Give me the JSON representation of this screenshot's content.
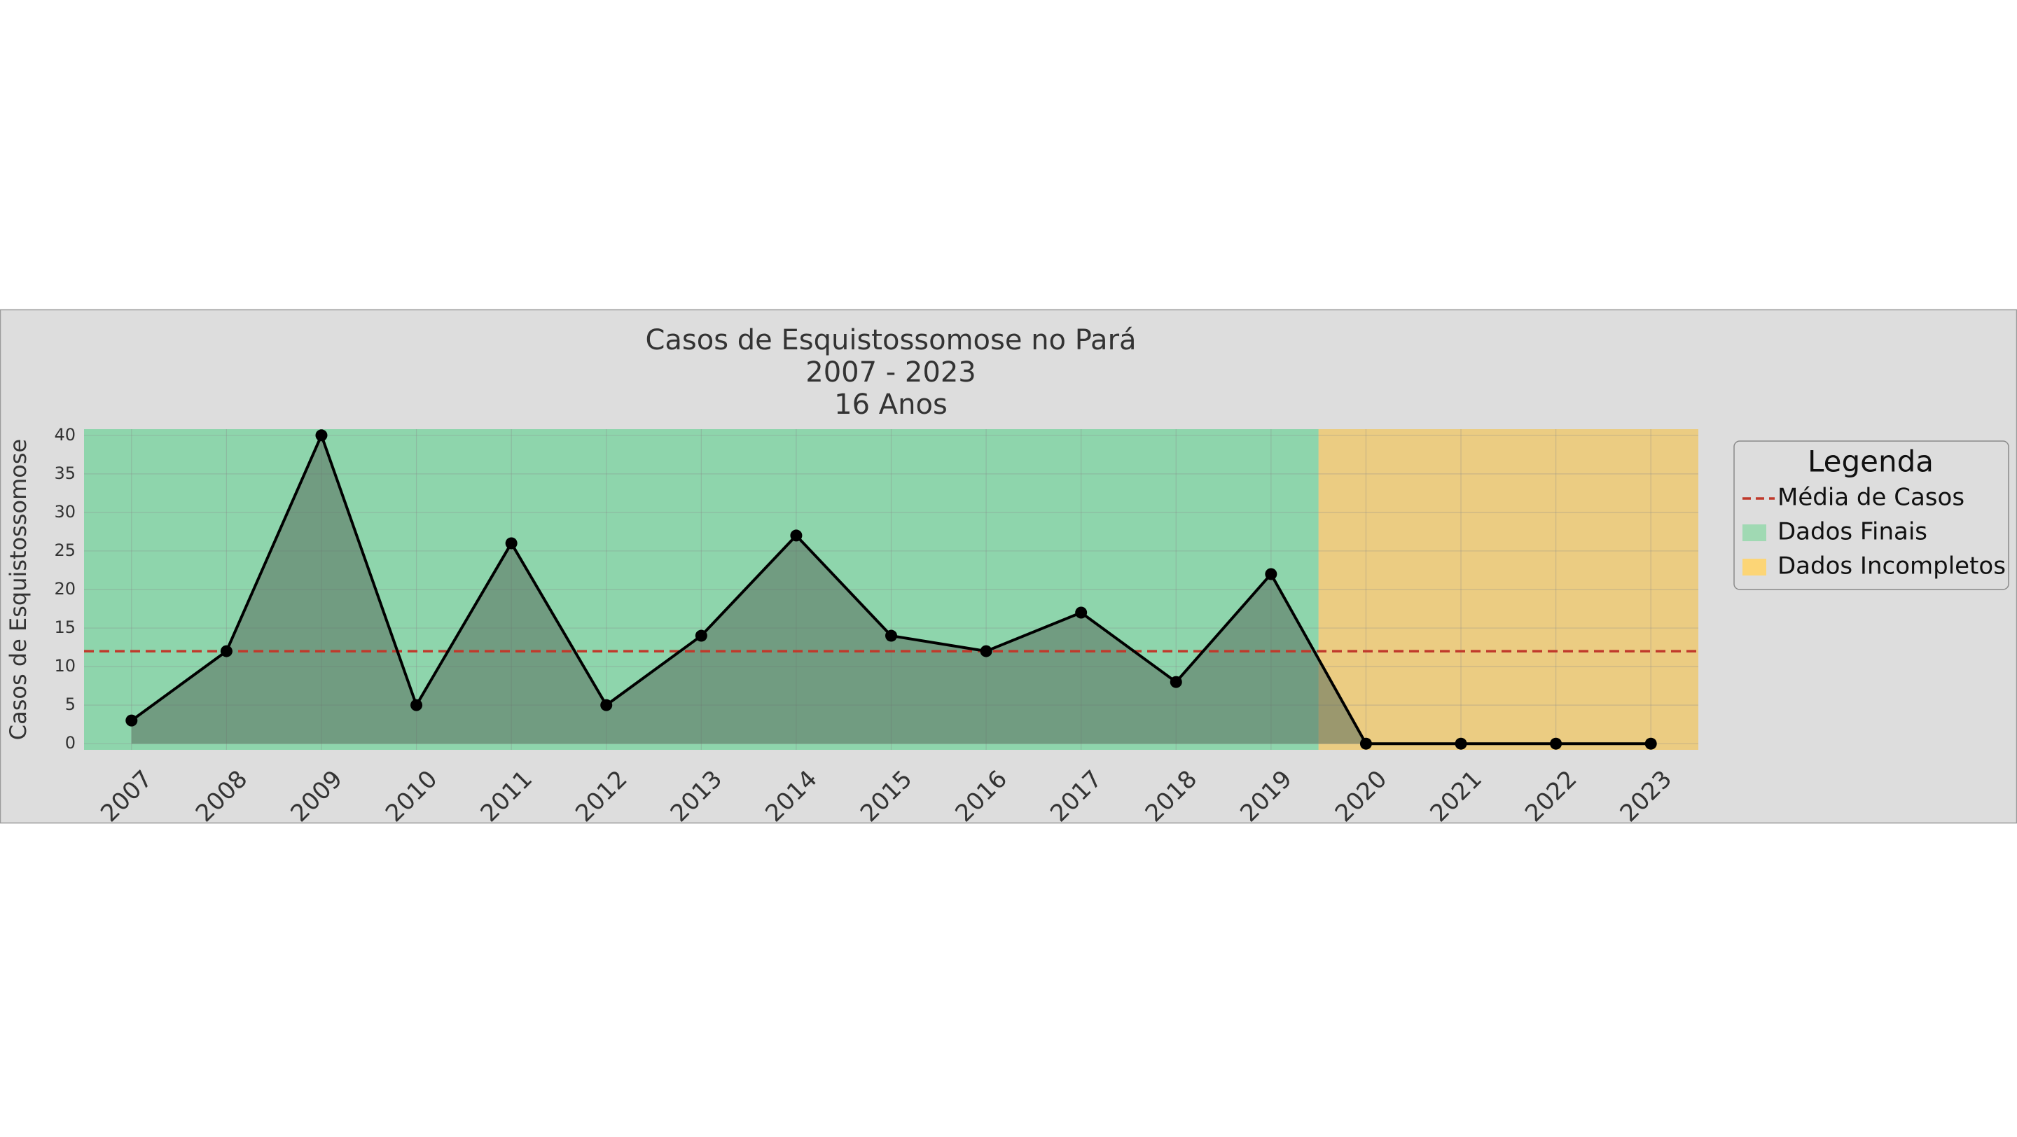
{
  "chart_data": {
    "type": "line",
    "title_lines": [
      "Casos de Esquistossomose no Pará",
      "2007 - 2023",
      "16 Anos"
    ],
    "xlabel": "",
    "ylabel": "Casos de Esquistossomose",
    "categories": [
      "2007",
      "2008",
      "2009",
      "2010",
      "2011",
      "2012",
      "2013",
      "2014",
      "2015",
      "2016",
      "2017",
      "2018",
      "2019",
      "2020",
      "2021",
      "2022",
      "2023"
    ],
    "series": [
      {
        "values": [
          3,
          12,
          40,
          5,
          26,
          5,
          14,
          27,
          14,
          12,
          17,
          8,
          22,
          0,
          0,
          0,
          0
        ],
        "color": "#000000"
      }
    ],
    "mean_line": {
      "label": "Média de Casos",
      "value": 12,
      "color": "#c0392b"
    },
    "regions": [
      {
        "label": "Dados Finais",
        "from": "2007",
        "to": "2019",
        "color": "#2ecc71"
      },
      {
        "label": "Dados Incompletos",
        "from": "2020",
        "to": "2023",
        "color": "#fdb813"
      }
    ],
    "yticks": [
      0,
      5,
      10,
      15,
      20,
      25,
      30,
      35,
      40
    ],
    "ylim": [
      -0.8,
      40.8
    ],
    "grid": true,
    "legend": {
      "title": "Legenda",
      "position": "right",
      "items": [
        {
          "label": "Média de Casos",
          "kind": "dashed-line",
          "color": "#c0392b"
        },
        {
          "label": "Dados Finais",
          "kind": "patch",
          "color": "#a0d9b3"
        },
        {
          "label": "Dados Incompletos",
          "kind": "patch",
          "color": "#fcd576"
        }
      ]
    },
    "colors": {
      "figure_bg": "#dddddd",
      "fill": "#5a6e5f"
    }
  }
}
